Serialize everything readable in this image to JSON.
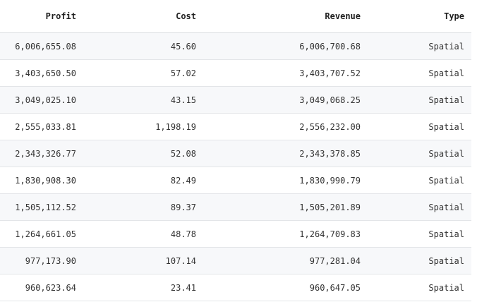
{
  "table": {
    "headers": {
      "profit": "Profit",
      "cost": "Cost",
      "revenue": "Revenue",
      "type": "Type"
    },
    "rows": [
      {
        "profit": "6,006,655.08",
        "cost": "45.60",
        "revenue": "6,006,700.68",
        "type": "Spatial"
      },
      {
        "profit": "3,403,650.50",
        "cost": "57.02",
        "revenue": "3,403,707.52",
        "type": "Spatial"
      },
      {
        "profit": "3,049,025.10",
        "cost": "43.15",
        "revenue": "3,049,068.25",
        "type": "Spatial"
      },
      {
        "profit": "2,555,033.81",
        "cost": "1,198.19",
        "revenue": "2,556,232.00",
        "type": "Spatial"
      },
      {
        "profit": "2,343,326.77",
        "cost": "52.08",
        "revenue": "2,343,378.85",
        "type": "Spatial"
      },
      {
        "profit": "1,830,908.30",
        "cost": "82.49",
        "revenue": "1,830,990.79",
        "type": "Spatial"
      },
      {
        "profit": "1,505,112.52",
        "cost": "89.37",
        "revenue": "1,505,201.89",
        "type": "Spatial"
      },
      {
        "profit": "1,264,661.05",
        "cost": "48.78",
        "revenue": "1,264,709.83",
        "type": "Spatial"
      },
      {
        "profit": "977,173.90",
        "cost": "107.14",
        "revenue": "977,281.04",
        "type": "Spatial"
      },
      {
        "profit": "960,623.64",
        "cost": "23.41",
        "revenue": "960,647.05",
        "type": "Spatial"
      }
    ]
  },
  "colors": {
    "stripe": "#f7f8fa",
    "border": "#e3e5e8",
    "text": "#333333"
  }
}
